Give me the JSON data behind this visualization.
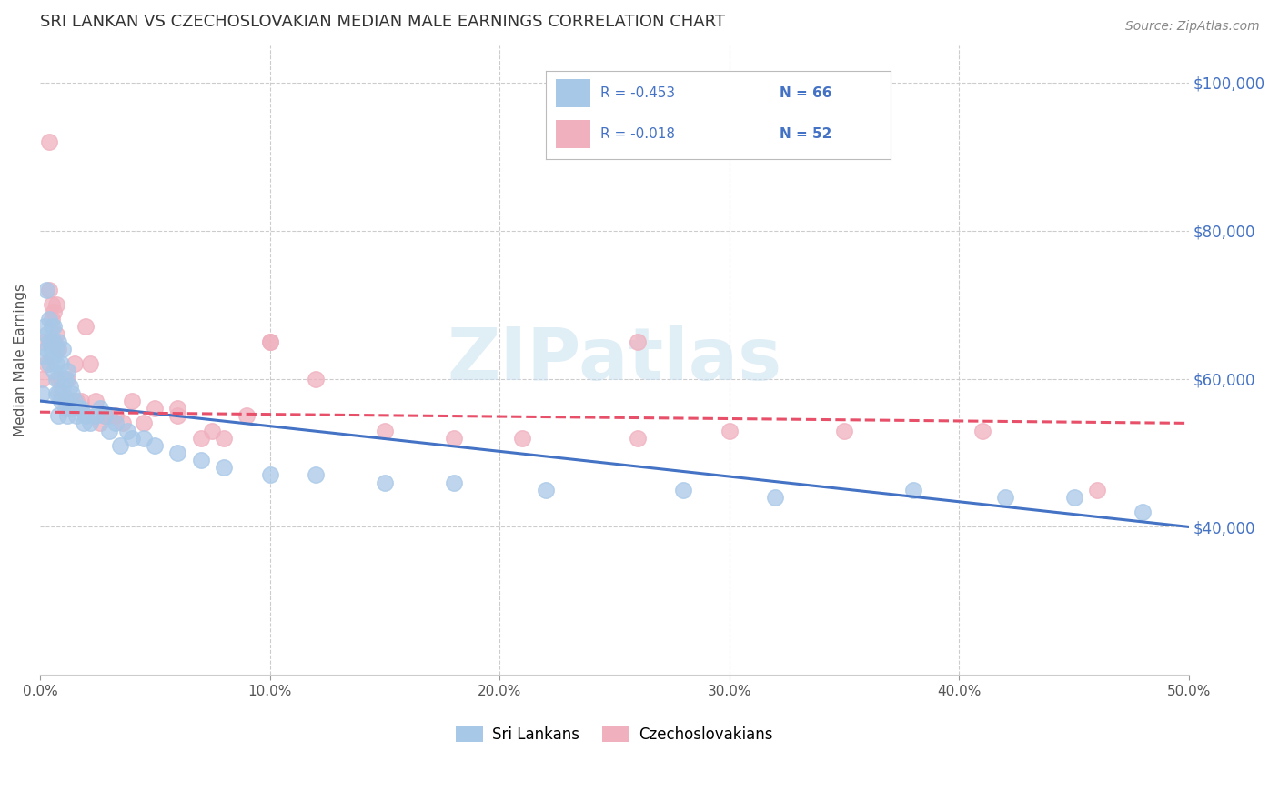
{
  "title": "SRI LANKAN VS CZECHOSLOVAKIAN MEDIAN MALE EARNINGS CORRELATION CHART",
  "source": "Source: ZipAtlas.com",
  "ylabel": "Median Male Earnings",
  "y_ticks": [
    40000,
    60000,
    80000,
    100000
  ],
  "y_tick_labels": [
    "$40,000",
    "$60,000",
    "$80,000",
    "$100,000"
  ],
  "watermark": "ZIPatlas",
  "legend_label_1": "Sri Lankans",
  "legend_label_2": "Czechoslovakians",
  "legend_r1": "R = -0.453",
  "legend_n1": "N = 66",
  "legend_r2": "R = -0.018",
  "legend_n2": "N = 52",
  "color_blue": "#A8C8E8",
  "color_pink": "#F0B0BE",
  "color_blue_line": "#4472C4",
  "color_pink_line": "#E8506A",
  "color_text_blue": "#4472C4",
  "sri_lankans_x": [
    0.001,
    0.002,
    0.002,
    0.003,
    0.003,
    0.003,
    0.004,
    0.004,
    0.004,
    0.005,
    0.005,
    0.005,
    0.005,
    0.006,
    0.006,
    0.006,
    0.006,
    0.007,
    0.007,
    0.007,
    0.007,
    0.008,
    0.008,
    0.008,
    0.009,
    0.009,
    0.01,
    0.01,
    0.011,
    0.011,
    0.012,
    0.012,
    0.013,
    0.013,
    0.014,
    0.015,
    0.016,
    0.017,
    0.018,
    0.019,
    0.02,
    0.022,
    0.024,
    0.026,
    0.028,
    0.03,
    0.033,
    0.035,
    0.038,
    0.04,
    0.045,
    0.05,
    0.06,
    0.07,
    0.08,
    0.1,
    0.12,
    0.15,
    0.18,
    0.22,
    0.28,
    0.32,
    0.38,
    0.42,
    0.45,
    0.48
  ],
  "sri_lankans_y": [
    58000,
    67000,
    63000,
    72000,
    66000,
    64000,
    65000,
    68000,
    62000,
    67000,
    65000,
    64000,
    63000,
    65000,
    63000,
    61000,
    67000,
    62000,
    60000,
    64000,
    58000,
    65000,
    58000,
    55000,
    62000,
    57000,
    64000,
    59000,
    60000,
    57000,
    61000,
    55000,
    59000,
    56000,
    58000,
    57000,
    55000,
    56000,
    56000,
    54000,
    55000,
    54000,
    55000,
    56000,
    55000,
    53000,
    54000,
    51000,
    53000,
    52000,
    52000,
    51000,
    50000,
    49000,
    48000,
    47000,
    47000,
    46000,
    46000,
    45000,
    45000,
    44000,
    45000,
    44000,
    44000,
    42000
  ],
  "czechoslovakians_x": [
    0.001,
    0.002,
    0.003,
    0.004,
    0.004,
    0.005,
    0.005,
    0.006,
    0.006,
    0.007,
    0.007,
    0.008,
    0.008,
    0.009,
    0.009,
    0.01,
    0.011,
    0.012,
    0.013,
    0.014,
    0.015,
    0.016,
    0.018,
    0.02,
    0.022,
    0.024,
    0.026,
    0.028,
    0.03,
    0.033,
    0.036,
    0.04,
    0.045,
    0.05,
    0.06,
    0.07,
    0.08,
    0.09,
    0.1,
    0.12,
    0.15,
    0.18,
    0.21,
    0.26,
    0.3,
    0.35,
    0.41,
    0.46,
    0.26,
    0.1,
    0.075,
    0.06
  ],
  "czechoslovakians_y": [
    60000,
    65000,
    62000,
    92000,
    72000,
    70000,
    68000,
    69000,
    65000,
    70000,
    66000,
    60000,
    64000,
    60000,
    58000,
    58000,
    56000,
    60000,
    57000,
    56000,
    62000,
    57000,
    57000,
    67000,
    62000,
    57000,
    54000,
    55000,
    55000,
    55000,
    54000,
    57000,
    54000,
    56000,
    56000,
    52000,
    52000,
    55000,
    65000,
    60000,
    53000,
    52000,
    52000,
    52000,
    53000,
    53000,
    53000,
    45000,
    65000,
    65000,
    53000,
    55000
  ],
  "xlim": [
    0.0,
    0.5
  ],
  "ylim": [
    20000,
    105000
  ],
  "blue_line_x": [
    0.0,
    0.5
  ],
  "blue_line_y": [
    57000,
    40000
  ],
  "pink_line_x": [
    0.0,
    0.5
  ],
  "pink_line_y": [
    55500,
    54000
  ],
  "x_tick_positions": [
    0.0,
    0.1,
    0.2,
    0.3,
    0.4,
    0.5
  ],
  "x_tick_labels": [
    "0.0%",
    "10.0%",
    "20.0%",
    "30.0%",
    "40.0%",
    "50.0%"
  ],
  "background_color": "#FFFFFF",
  "grid_color": "#CCCCCC"
}
